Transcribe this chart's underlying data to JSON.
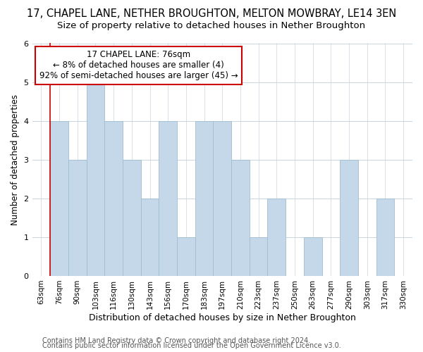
{
  "title": "17, CHAPEL LANE, NETHER BROUGHTON, MELTON MOWBRAY, LE14 3EN",
  "subtitle": "Size of property relative to detached houses in Nether Broughton",
  "xlabel": "Distribution of detached houses by size in Nether Broughton",
  "ylabel": "Number of detached properties",
  "categories": [
    "63sqm",
    "76sqm",
    "90sqm",
    "103sqm",
    "116sqm",
    "130sqm",
    "143sqm",
    "156sqm",
    "170sqm",
    "183sqm",
    "197sqm",
    "210sqm",
    "223sqm",
    "237sqm",
    "250sqm",
    "263sqm",
    "277sqm",
    "290sqm",
    "303sqm",
    "317sqm",
    "330sqm"
  ],
  "values": [
    0,
    4,
    3,
    5,
    4,
    3,
    2,
    4,
    1,
    4,
    4,
    3,
    1,
    2,
    0,
    1,
    0,
    3,
    0,
    2,
    0
  ],
  "bar_color": "#c5d8ea",
  "bar_edge_color": "#a0bdd0",
  "highlight_line_color": "#cc0000",
  "highlight_index": 1,
  "ylim": [
    0,
    6
  ],
  "yticks": [
    0,
    1,
    2,
    3,
    4,
    5,
    6
  ],
  "annotation_title": "17 CHAPEL LANE: 76sqm",
  "annotation_line1": "← 8% of detached houses are smaller (4)",
  "annotation_line2": "92% of semi-detached houses are larger (45) →",
  "annotation_box_color": "#ffffff",
  "annotation_box_edge": "#cc0000",
  "footer1": "Contains HM Land Registry data © Crown copyright and database right 2024.",
  "footer2": "Contains public sector information licensed under the Open Government Licence v3.0.",
  "background_color": "#ffffff",
  "grid_color": "#c8d4de",
  "title_fontsize": 10.5,
  "subtitle_fontsize": 9.5,
  "tick_fontsize": 7.5,
  "ylabel_fontsize": 8.5,
  "xlabel_fontsize": 9,
  "footer_fontsize": 7,
  "annotation_fontsize": 8.5
}
